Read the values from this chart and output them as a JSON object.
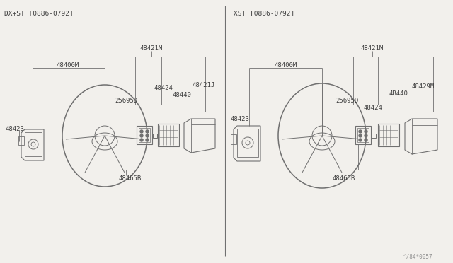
{
  "bg_color": "#f2f0ec",
  "lc": "#707070",
  "tc": "#404040",
  "fs": 6.5,
  "left_header": "DX+ST [0886-0792]",
  "right_header": "XST [0886-0792]",
  "watermark": "^/84*0057"
}
